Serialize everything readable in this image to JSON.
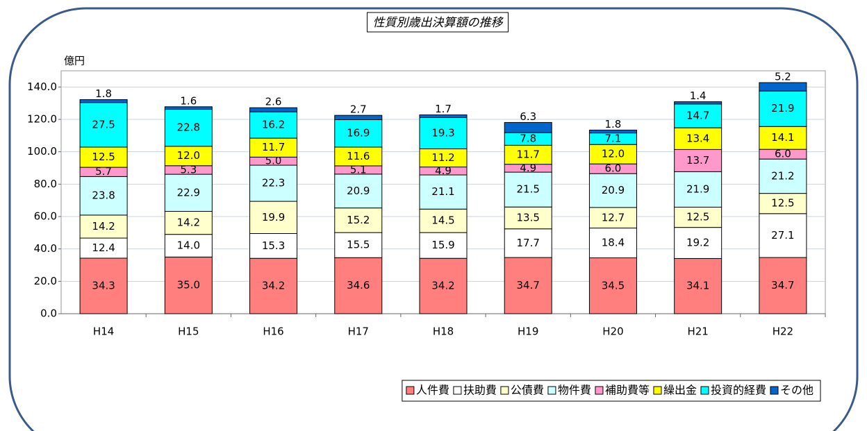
{
  "chart_data": {
    "type": "stacked_bar",
    "title": "性質別歳出決算額の推移",
    "y_label": "億円",
    "categories": [
      "H14",
      "H15",
      "H16",
      "H17",
      "H18",
      "H19",
      "H20",
      "H21",
      "H22"
    ],
    "ylim": [
      0,
      150
    ],
    "yticks": [
      {
        "value": 0,
        "label": "0.0"
      },
      {
        "value": 20,
        "label": "20.0"
      },
      {
        "value": 40,
        "label": "40.0"
      },
      {
        "value": 60,
        "label": "60.0"
      },
      {
        "value": 80,
        "label": "80.0"
      },
      {
        "value": 100,
        "label": "100.0"
      },
      {
        "value": 120,
        "label": "120.0"
      },
      {
        "value": 140,
        "label": "140.0"
      }
    ],
    "grid": true,
    "legend": "bottom-right",
    "series": [
      {
        "name": "人件費",
        "color": "#ff7f7f",
        "values": [
          34.3,
          35.0,
          34.2,
          34.6,
          34.2,
          34.7,
          34.5,
          34.1,
          34.7
        ],
        "value_labels": [
          "34.3",
          "35.0",
          "34.2",
          "34.6",
          "34.2",
          "34.7",
          "34.5",
          "34.1",
          "34.7"
        ]
      },
      {
        "name": "扶助費",
        "color": "#ffffff",
        "values": [
          12.4,
          14.0,
          15.3,
          15.5,
          15.9,
          17.7,
          18.4,
          19.2,
          27.1
        ],
        "value_labels": [
          "12.4",
          "14.0",
          "15.3",
          "15.5",
          "15.9",
          "17.7",
          "18.4",
          "19.2",
          "27.1"
        ]
      },
      {
        "name": "公債費",
        "color": "#ffffcc",
        "values": [
          14.2,
          14.2,
          19.9,
          15.2,
          14.5,
          13.5,
          12.7,
          12.5,
          12.5
        ],
        "value_labels": [
          "14.2",
          "14.2",
          "19.9",
          "15.2",
          "14.5",
          "13.5",
          "12.7",
          "12.5",
          "12.5"
        ]
      },
      {
        "name": "物件費",
        "color": "#ccffff",
        "values": [
          23.8,
          22.9,
          22.3,
          20.9,
          21.1,
          21.5,
          20.9,
          21.9,
          21.2
        ],
        "value_labels": [
          "23.8",
          "22.9",
          "22.3",
          "20.9",
          "21.1",
          "21.5",
          "20.9",
          "21.9",
          "21.2"
        ]
      },
      {
        "name": "補助費等",
        "color": "#ff99cc",
        "values": [
          5.7,
          5.3,
          5.0,
          5.1,
          4.9,
          4.9,
          6.0,
          13.7,
          6.0
        ],
        "value_labels": [
          "5.7",
          "5.3",
          "5.0",
          "5.1",
          "4.9",
          "4.9",
          "6.0",
          "13.7",
          "6.0"
        ]
      },
      {
        "name": "繰出金",
        "color": "#ffff00",
        "values": [
          12.5,
          12.0,
          11.7,
          11.6,
          11.2,
          11.7,
          12.0,
          13.4,
          14.1
        ],
        "value_labels": [
          "12.5",
          "12.0",
          "11.7",
          "11.6",
          "11.2",
          "11.7",
          "12.0",
          "13.4",
          "14.1"
        ]
      },
      {
        "name": "投資的経費",
        "color": "#00ffff",
        "values": [
          27.5,
          22.8,
          16.2,
          16.9,
          19.3,
          7.8,
          7.1,
          14.7,
          21.9
        ],
        "value_labels": [
          "27.5",
          "22.8",
          "16.2",
          "16.9",
          "19.3",
          "7.8",
          "7.1",
          "14.7",
          "21.9"
        ]
      },
      {
        "name": "その他",
        "color": "#0066cc",
        "values": [
          1.8,
          1.6,
          2.6,
          2.7,
          1.7,
          6.3,
          1.8,
          1.4,
          5.2
        ],
        "value_labels": [
          "1.8",
          "1.6",
          "2.6",
          "2.7",
          "1.7",
          "6.3",
          "1.8",
          "1.4",
          "5.2"
        ]
      }
    ]
  }
}
